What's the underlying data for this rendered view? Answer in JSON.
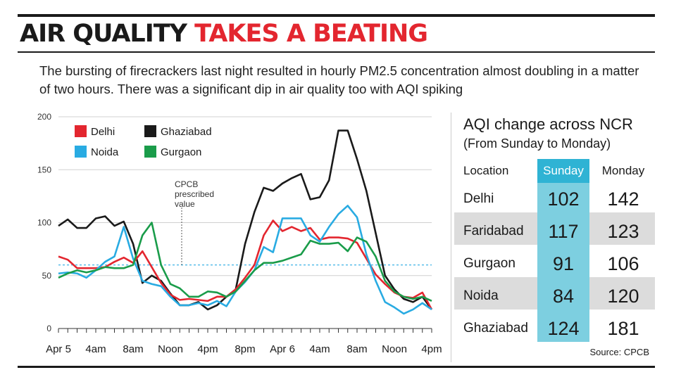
{
  "headline": {
    "part1": "AIR QUALITY",
    "part2": "TAKES A BEATING"
  },
  "subtitle": "The bursting of firecrackers last night resulted in hourly PM2.5 concentration almost doubling in a matter of two hours. There was a significant dip in air quality too with AQI spiking",
  "colors": {
    "delhi": "#e3262f",
    "noida": "#29abe2",
    "ghaziabad": "#1a1a1a",
    "gurgaon": "#1a9c4a",
    "accent_red": "#e3262f",
    "sunday_band": "#7dcfe0",
    "sunday_header": "#2fb3d4",
    "row_shade": "#dcdcdc"
  },
  "chart_data": {
    "type": "line",
    "title": "",
    "xlabel": "",
    "ylabel": "",
    "ylim": [
      0,
      200
    ],
    "yticks": [
      0,
      50,
      100,
      150,
      200
    ],
    "x_tick_labels": [
      "Apr 5",
      "4am",
      "8am",
      "Noon",
      "4pm",
      "8pm",
      "Apr 6",
      "4am",
      "8am",
      "Noon",
      "4pm"
    ],
    "x": [
      0,
      1,
      2,
      3,
      4,
      5,
      6,
      7,
      8,
      9,
      10,
      11,
      12,
      13,
      14,
      15,
      16,
      17,
      18,
      19,
      20,
      21,
      22,
      23,
      24,
      25,
      26,
      27,
      28,
      29,
      30,
      31,
      32,
      33,
      34,
      35,
      36,
      37,
      38,
      39,
      40
    ],
    "series": [
      {
        "name": "Ghaziabad",
        "color": "#1a1a1a",
        "values": [
          97,
          103,
          95,
          95,
          104,
          106,
          97,
          101,
          80,
          43,
          50,
          45,
          33,
          22,
          22,
          25,
          18,
          22,
          30,
          37,
          80,
          110,
          133,
          130,
          137,
          142,
          146,
          122,
          124,
          140,
          187,
          187,
          160,
          130,
          90,
          50,
          37,
          28,
          25,
          30,
          18
        ]
      },
      {
        "name": "Delhi",
        "color": "#e3262f",
        "values": [
          68,
          65,
          57,
          57,
          57,
          58,
          63,
          67,
          62,
          73,
          58,
          43,
          32,
          27,
          28,
          27,
          26,
          30,
          30,
          37,
          48,
          60,
          88,
          102,
          92,
          96,
          92,
          95,
          84,
          86,
          86,
          85,
          81,
          66,
          51,
          42,
          34,
          30,
          29,
          34,
          18
        ]
      },
      {
        "name": "Noida",
        "color": "#29abe2",
        "values": [
          52,
          53,
          52,
          48,
          55,
          63,
          68,
          96,
          66,
          45,
          42,
          40,
          30,
          22,
          22,
          24,
          22,
          26,
          21,
          35,
          44,
          55,
          77,
          72,
          104,
          104,
          104,
          88,
          82,
          96,
          108,
          116,
          105,
          70,
          45,
          25,
          20,
          14,
          18,
          24,
          18
        ]
      },
      {
        "name": "Gurgaon",
        "color": "#1a9c4a",
        "values": [
          48,
          52,
          55,
          53,
          55,
          58,
          57,
          57,
          60,
          88,
          100,
          60,
          42,
          38,
          30,
          30,
          35,
          34,
          30,
          35,
          45,
          55,
          62,
          62,
          64,
          67,
          70,
          83,
          80,
          80,
          81,
          73,
          86,
          82,
          68,
          45,
          35,
          30,
          28,
          30,
          26
        ]
      }
    ],
    "reference_line": {
      "label_lines": [
        "CPCB",
        "prescribed",
        "value"
      ],
      "value": 60
    },
    "legend_order": [
      "Delhi",
      "Ghaziabad",
      "Noida",
      "Gurgaon"
    ],
    "legend_placement": "top-left",
    "grid": true
  },
  "aqi_table": {
    "title": "AQI change across NCR",
    "subtitle": "(From Sunday to Monday)",
    "headers": {
      "location": "Location",
      "sunday": "Sunday",
      "monday": "Monday"
    },
    "rows": [
      {
        "location": "Delhi",
        "sunday": "102",
        "monday": "142"
      },
      {
        "location": "Faridabad",
        "sunday": "117",
        "monday": "123"
      },
      {
        "location": "Gurgaon",
        "sunday": "91",
        "monday": "106"
      },
      {
        "location": "Noida",
        "sunday": "84",
        "monday": "120"
      },
      {
        "location": "Ghaziabad",
        "sunday": "124",
        "monday": "181"
      }
    ],
    "source": "Source: CPCB"
  }
}
